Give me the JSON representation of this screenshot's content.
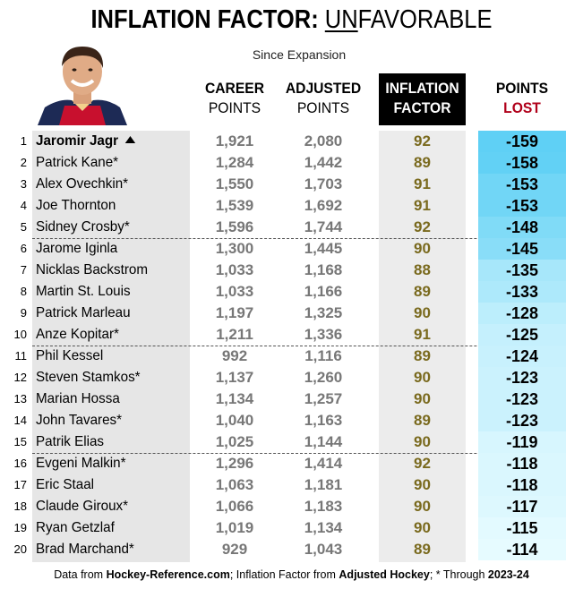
{
  "title": {
    "bold": "INFLATION FACTOR: ",
    "underlined": "UN",
    "rest": "FAVORABLE"
  },
  "subtitle": "Since Expansion",
  "headers": {
    "career": [
      "CAREER",
      "POINTS"
    ],
    "adjusted": [
      "ADJUSTED",
      "POINTS"
    ],
    "inflation": [
      "INFLATION",
      "FACTOR"
    ],
    "lost": [
      "POINTS",
      "LOST"
    ]
  },
  "colors": {
    "lost_header": "#b0001a",
    "inflation_value": "#7a6a1e",
    "points_value": "#777777",
    "lost_max": "#5fd0f5",
    "lost_min": "#e6fbff"
  },
  "chart_data": {
    "type": "table",
    "columns": [
      "CAREER POINTS",
      "ADJUSTED POINTS",
      "INFLATION FACTOR",
      "POINTS LOST"
    ],
    "rows": [
      {
        "rank": "1",
        "name": "Jaromir Jagr",
        "career": "1,921",
        "adjusted": "2,080",
        "inflation": "92",
        "lost": "-159",
        "lost_value": -159
      },
      {
        "rank": "2",
        "name": "Patrick Kane*",
        "career": "1,284",
        "adjusted": "1,442",
        "inflation": "89",
        "lost": "-158",
        "lost_value": -158
      },
      {
        "rank": "3",
        "name": "Alex Ovechkin*",
        "career": "1,550",
        "adjusted": "1,703",
        "inflation": "91",
        "lost": "-153",
        "lost_value": -153
      },
      {
        "rank": "4",
        "name": "Joe Thornton",
        "career": "1,539",
        "adjusted": "1,692",
        "inflation": "91",
        "lost": "-153",
        "lost_value": -153
      },
      {
        "rank": "5",
        "name": "Sidney Crosby*",
        "career": "1,596",
        "adjusted": "1,744",
        "inflation": "92",
        "lost": "-148",
        "lost_value": -148
      },
      {
        "rank": "6",
        "name": "Jarome Iginla",
        "career": "1,300",
        "adjusted": "1,445",
        "inflation": "90",
        "lost": "-145",
        "lost_value": -145
      },
      {
        "rank": "7",
        "name": "Nicklas Backstrom",
        "career": "1,033",
        "adjusted": "1,168",
        "inflation": "88",
        "lost": "-135",
        "lost_value": -135
      },
      {
        "rank": "8",
        "name": "Martin St. Louis",
        "career": "1,033",
        "adjusted": "1,166",
        "inflation": "89",
        "lost": "-133",
        "lost_value": -133
      },
      {
        "rank": "9",
        "name": "Patrick Marleau",
        "career": "1,197",
        "adjusted": "1,325",
        "inflation": "90",
        "lost": "-128",
        "lost_value": -128
      },
      {
        "rank": "10",
        "name": "Anze Kopitar*",
        "career": "1,211",
        "adjusted": "1,336",
        "inflation": "91",
        "lost": "-125",
        "lost_value": -125
      },
      {
        "rank": "11",
        "name": "Phil Kessel",
        "career": "992",
        "adjusted": "1,116",
        "inflation": "89",
        "lost": "-124",
        "lost_value": -124
      },
      {
        "rank": "12",
        "name": "Steven Stamkos*",
        "career": "1,137",
        "adjusted": "1,260",
        "inflation": "90",
        "lost": "-123",
        "lost_value": -123
      },
      {
        "rank": "13",
        "name": "Marian Hossa",
        "career": "1,134",
        "adjusted": "1,257",
        "inflation": "90",
        "lost": "-123",
        "lost_value": -123
      },
      {
        "rank": "14",
        "name": "John Tavares*",
        "career": "1,040",
        "adjusted": "1,163",
        "inflation": "89",
        "lost": "-123",
        "lost_value": -123
      },
      {
        "rank": "15",
        "name": "Patrik Elias",
        "career": "1,025",
        "adjusted": "1,144",
        "inflation": "90",
        "lost": "-119",
        "lost_value": -119
      },
      {
        "rank": "16",
        "name": "Evgeni Malkin*",
        "career": "1,296",
        "adjusted": "1,414",
        "inflation": "92",
        "lost": "-118",
        "lost_value": -118
      },
      {
        "rank": "17",
        "name": "Eric Staal",
        "career": "1,063",
        "adjusted": "1,181",
        "inflation": "90",
        "lost": "-118",
        "lost_value": -118
      },
      {
        "rank": "18",
        "name": "Claude Giroux*",
        "career": "1,066",
        "adjusted": "1,183",
        "inflation": "90",
        "lost": "-117",
        "lost_value": -117
      },
      {
        "rank": "19",
        "name": "Ryan Getzlaf",
        "career": "1,019",
        "adjusted": "1,134",
        "inflation": "90",
        "lost": "-115",
        "lost_value": -115
      },
      {
        "rank": "20",
        "name": "Brad Marchand*",
        "career": "929",
        "adjusted": "1,043",
        "inflation": "89",
        "lost": "-114",
        "lost_value": -114
      }
    ]
  },
  "footer": {
    "t1": "Data from ",
    "b1": "Hockey-Reference.com",
    "t2": "; Inflation Factor from ",
    "b2": "Adjusted Hockey",
    "t3": "; * Through ",
    "b3": "2023-24"
  }
}
